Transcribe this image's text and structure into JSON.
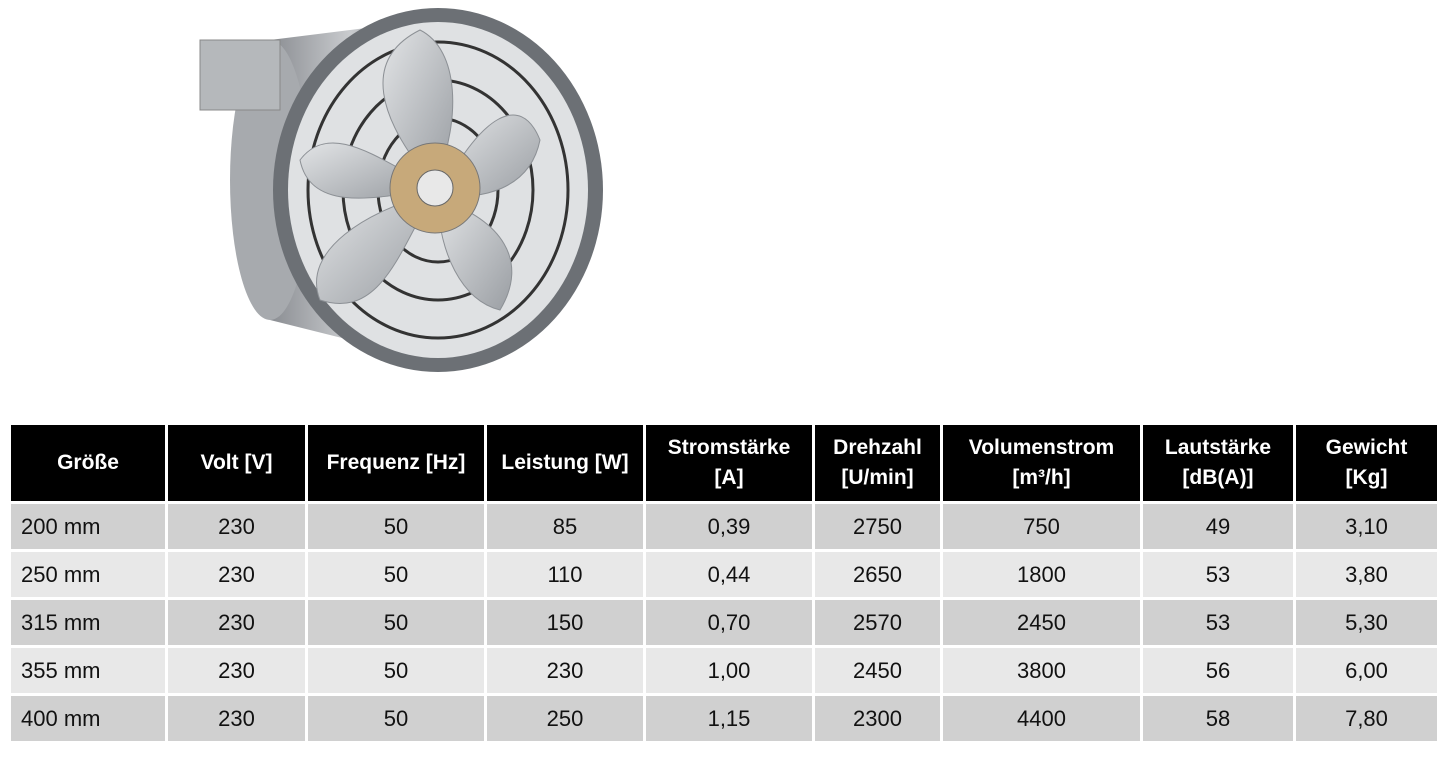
{
  "table": {
    "header": [
      "Größe",
      "Volt [V]",
      "Frequenz [Hz]",
      "Leistung [W]",
      "Stromstärke\n[A]",
      "Drehzahl\n[U/min]",
      "Volumenstrom\n[m³/h]",
      "Lautstärke\n[dB(A)]",
      "Gewicht\n[Kg]"
    ],
    "rows": [
      [
        "200 mm",
        "230",
        "50",
        "85",
        "0,39",
        "2750",
        "750",
        "49",
        "3,10"
      ],
      [
        "250 mm",
        "230",
        "50",
        "110",
        "0,44",
        "2650",
        "1800",
        "53",
        "3,80"
      ],
      [
        "315 mm",
        "230",
        "50",
        "150",
        "0,70",
        "2570",
        "2450",
        "53",
        "5,30"
      ],
      [
        "355 mm",
        "230",
        "50",
        "230",
        "1,00",
        "2450",
        "3800",
        "56",
        "6,00"
      ],
      [
        "400 mm",
        "230",
        "50",
        "250",
        "1,15",
        "2300",
        "4400",
        "58",
        "7,80"
      ]
    ]
  }
}
